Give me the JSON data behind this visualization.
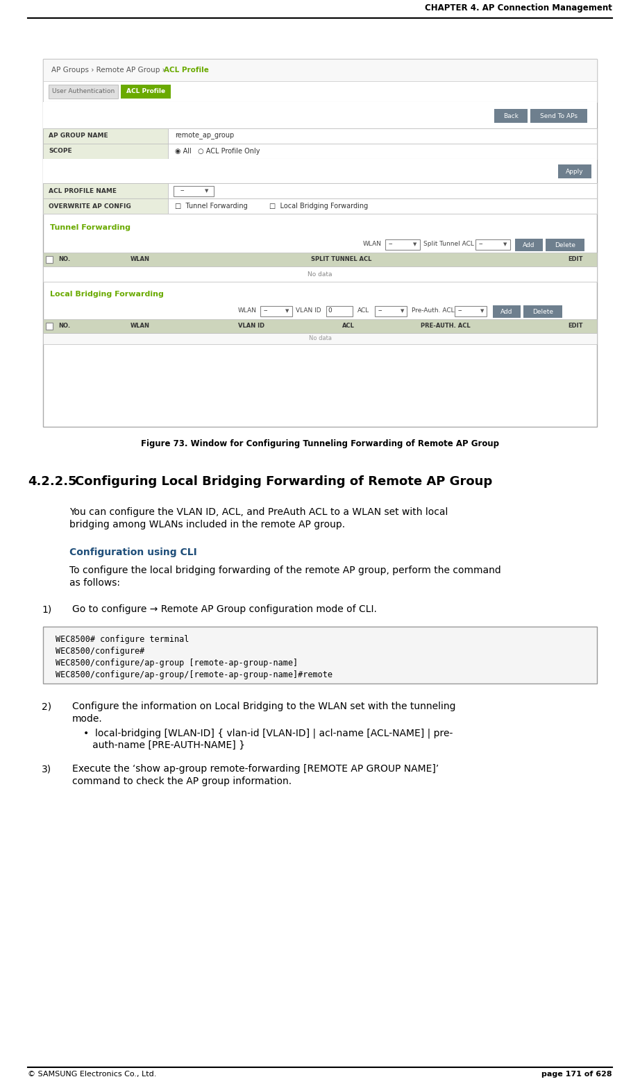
{
  "page_width": 9.22,
  "page_height": 15.65,
  "bg_color": "#ffffff",
  "header_text": "CHAPTER 4. AP Connection Management",
  "footer_left": "© SAMSUNG Electronics Co., Ltd.",
  "footer_right": "page 171 of 628",
  "breadcrumb_plain": "AP Groups › Remote AP Group › ",
  "breadcrumb_highlight": "ACL Profile",
  "breadcrumb_color_plain": "#555555",
  "breadcrumb_color_highlight": "#6aaa00",
  "tab_user_auth": "User Authentication",
  "tab_acl_profile": "ACL Profile",
  "tab_acl_bg": "#6aaa00",
  "tab_acl_fg": "#ffffff",
  "btn_back_text": "Back",
  "btn_send_text": "Send To APs",
  "btn_apply_text": "Apply",
  "btn_color": "#6e7f8e",
  "btn_fg": "#ffffff",
  "field1_label": "AP GROUP NAME",
  "field1_value": "remote_ap_group",
  "field2_label": "SCOPE",
  "field2_radio": "◉ All   ○ ACL Profile Only",
  "field3_label": "ACL PROFILE NAME",
  "field4_label": "OVERWRITE AP CONFIG",
  "field4_checkboxes": "□  Tunnel Forwarding          □  Local Bridging Forwarding",
  "section1_title": "Tunnel Forwarding",
  "section1_color": "#6aaa00",
  "tunnel_wlan_label": "WLAN",
  "tunnel_split_label": "Split Tunnel ACL",
  "tunnel_col_no": "NO.",
  "tunnel_col_wlan": "WLAN",
  "tunnel_col_split": "SPLIT TUNNEL ACL",
  "tunnel_col_edit": "EDIT",
  "tunnel_no_data": "No data",
  "btn_add_text": "Add",
  "btn_del_text": "Delete",
  "section2_title": "Local Bridging Forwarding",
  "section2_color": "#6aaa00",
  "lb_wlan_label": "WLAN",
  "lb_vlanid_label": "VLAN ID",
  "lb_vlanid_val": "0",
  "lb_acl_label": "ACL",
  "lb_preauth_label": "Pre-Auth. ACL",
  "lb_col_no": "NO.",
  "lb_col_wlan": "WLAN",
  "lb_col_vlanid": "VLAN ID",
  "lb_col_acl": "ACL",
  "lb_col_preauth": "PRE-AUTH. ACL",
  "lb_col_edit": "EDIT",
  "lb_no_data": "No data",
  "fig_caption": "Figure 73. Window for Configuring Tunneling Forwarding of Remote AP Group",
  "section_heading_num": "4.2.2.5",
  "section_heading_title": "Configuring Local Bridging Forwarding of Remote AP Group",
  "para1_line1": "You can configure the VLAN ID, ACL, and PreAuth ACL to a WLAN set with local",
  "para1_line2": "bridging among WLANs included in the remote AP group.",
  "cli_heading": "Configuration using CLI",
  "cli_heading_color": "#1f4e79",
  "para2_line1": "To configure the local bridging forwarding of the remote AP group, perform the command",
  "para2_line2": "as follows:",
  "step1_num": "1)",
  "step1_text": "Go to configure → Remote AP Group configuration mode of CLI.",
  "code_line1": "WEC8500# configure terminal",
  "code_line2": "WEC8500/configure#",
  "code_line3": "WEC8500/configure/ap-group [remote-ap-group-name]",
  "code_line4": "WEC8500/configure/ap-group/[remote-ap-group-name]#remote",
  "code_bg": "#f5f5f5",
  "code_border": "#999999",
  "step2_num": "2)",
  "step2_line1": "Configure the information on Local Bridging to the WLAN set with the tunneling",
  "step2_line2": "mode.",
  "step2_bullet": "•  local-bridging [WLAN-ID] { vlan-id [VLAN-ID] | acl-name [ACL-NAME] | pre-",
  "step2_bullet2": "   auth-name [PRE-AUTH-NAME] }",
  "step3_num": "3)",
  "step3_line1": "Execute the ‘show ap-group remote-forwarding [REMOTE AP GROUP NAME]’",
  "step3_line2": "command to check the AP group information.",
  "label_bg": "#e8eddc",
  "table_header_bg": "#cdd5bc",
  "row_bg": "#ffffff",
  "border_color": "#bbbbbb"
}
